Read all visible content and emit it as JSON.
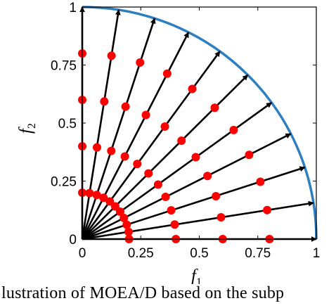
{
  "chart_data": {
    "type": "scatter",
    "title": "",
    "xlabel": "f",
    "xlabel_sub": "1",
    "ylabel": "f",
    "ylabel_sub": "2",
    "xlim": [
      0,
      1
    ],
    "ylim": [
      0,
      1
    ],
    "xticks": [
      "0",
      "0.25",
      "0.5",
      "0.75",
      "1"
    ],
    "yticks": [
      "0",
      "0.25",
      "0.5",
      "0.75",
      "1"
    ],
    "grid": false,
    "front": {
      "shape": "quarter-circle",
      "radius": 1,
      "color": "#2d7fc1"
    },
    "weight_vectors": [
      {
        "x": 1.0,
        "y": 0.0
      },
      {
        "x": 0.988,
        "y": 0.156
      },
      {
        "x": 0.951,
        "y": 0.309
      },
      {
        "x": 0.891,
        "y": 0.454
      },
      {
        "x": 0.809,
        "y": 0.588
      },
      {
        "x": 0.707,
        "y": 0.707
      },
      {
        "x": 0.588,
        "y": 0.809
      },
      {
        "x": 0.454,
        "y": 0.891
      },
      {
        "x": 0.309,
        "y": 0.951
      },
      {
        "x": 0.156,
        "y": 0.988
      },
      {
        "x": 0.0,
        "y": 1.0
      }
    ],
    "vector_color": "#000000",
    "solutions": {
      "color": "#ff0000",
      "points": [
        {
          "x": 0.0,
          "y": 0.2
        },
        {
          "x": 0.0,
          "y": 0.4
        },
        {
          "x": 0.0,
          "y": 0.6
        },
        {
          "x": 0.0,
          "y": 0.8
        },
        {
          "x": 0.031,
          "y": 0.198
        },
        {
          "x": 0.063,
          "y": 0.395
        },
        {
          "x": 0.094,
          "y": 0.593
        },
        {
          "x": 0.125,
          "y": 0.79
        },
        {
          "x": 0.062,
          "y": 0.19
        },
        {
          "x": 0.124,
          "y": 0.38
        },
        {
          "x": 0.185,
          "y": 0.571
        },
        {
          "x": 0.247,
          "y": 0.761
        },
        {
          "x": 0.091,
          "y": 0.178
        },
        {
          "x": 0.182,
          "y": 0.356
        },
        {
          "x": 0.272,
          "y": 0.535
        },
        {
          "x": 0.363,
          "y": 0.713
        },
        {
          "x": 0.118,
          "y": 0.162
        },
        {
          "x": 0.235,
          "y": 0.324
        },
        {
          "x": 0.353,
          "y": 0.485
        },
        {
          "x": 0.47,
          "y": 0.647
        },
        {
          "x": 0.141,
          "y": 0.141
        },
        {
          "x": 0.283,
          "y": 0.283
        },
        {
          "x": 0.424,
          "y": 0.424
        },
        {
          "x": 0.566,
          "y": 0.566
        },
        {
          "x": 0.162,
          "y": 0.118
        },
        {
          "x": 0.324,
          "y": 0.235
        },
        {
          "x": 0.485,
          "y": 0.353
        },
        {
          "x": 0.647,
          "y": 0.47
        },
        {
          "x": 0.178,
          "y": 0.091
        },
        {
          "x": 0.356,
          "y": 0.182
        },
        {
          "x": 0.535,
          "y": 0.272
        },
        {
          "x": 0.713,
          "y": 0.363
        },
        {
          "x": 0.19,
          "y": 0.062
        },
        {
          "x": 0.38,
          "y": 0.124
        },
        {
          "x": 0.571,
          "y": 0.185
        },
        {
          "x": 0.761,
          "y": 0.247
        },
        {
          "x": 0.198,
          "y": 0.031
        },
        {
          "x": 0.395,
          "y": 0.063
        },
        {
          "x": 0.593,
          "y": 0.094
        },
        {
          "x": 0.79,
          "y": 0.125
        },
        {
          "x": 0.2,
          "y": 0.0
        },
        {
          "x": 0.4,
          "y": 0.0
        },
        {
          "x": 0.6,
          "y": 0.0
        },
        {
          "x": 0.8,
          "y": 0.0
        }
      ]
    }
  },
  "caption": "lustration of MOEA/D based on the subp"
}
